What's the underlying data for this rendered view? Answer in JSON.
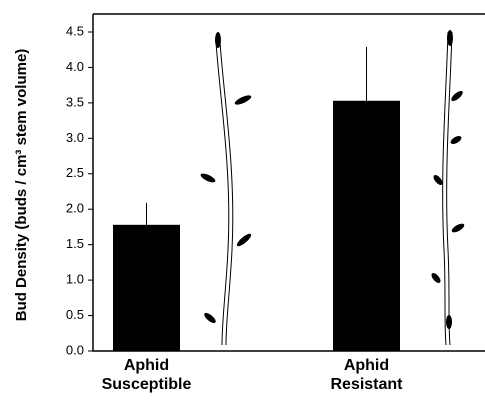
{
  "chart_data": {
    "type": "bar",
    "y_label": "Bud Density (buds / cm³ stem volume)",
    "categories": [
      "Aphid Susceptible",
      "Aphid Resistant"
    ],
    "values": [
      1.78,
      3.53
    ],
    "errors": [
      0.31,
      0.76
    ],
    "color": "#000000",
    "ylim": [
      0,
      4.5
    ],
    "yticks": [
      {
        "value": 0,
        "label": "0.0"
      },
      0.5,
      {
        "value": 1,
        "label": "1.0"
      },
      1.5,
      {
        "value": 2,
        "label": "2.0"
      },
      2.5,
      {
        "value": 3,
        "label": "3.0"
      },
      3.5,
      {
        "value": 4,
        "label": "4.0"
      },
      4.5
    ],
    "grid": false
  }
}
